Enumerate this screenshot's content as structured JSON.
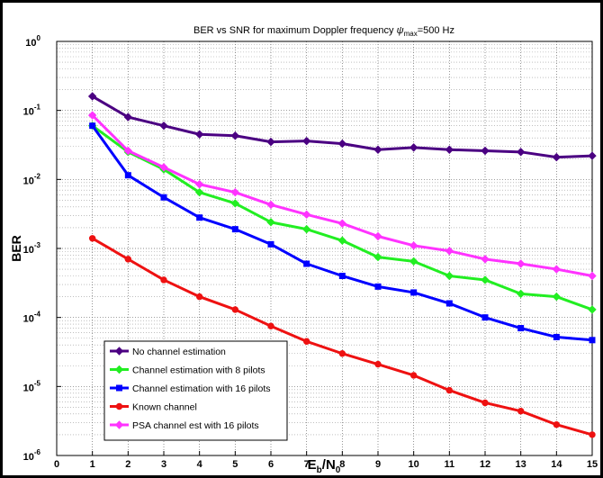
{
  "chart_data": {
    "type": "line",
    "title": "BER vs SNR for maximum Doppler frequency",
    "title_symbol": "ψ",
    "title_subscript": "max",
    "title_suffix": "=500 Hz",
    "xlabel_base": "E",
    "xlabel_sub1": "b",
    "xlabel_slash": "/N",
    "xlabel_sub2": "0",
    "ylabel": "BER",
    "y_scale": "log",
    "xlim": [
      0,
      15
    ],
    "ylim": [
      1e-06,
      1
    ],
    "x_ticks": [
      "0",
      "1",
      "2",
      "3",
      "4",
      "5",
      "6",
      "7",
      "8",
      "9",
      "10",
      "11",
      "12",
      "13",
      "14",
      "15"
    ],
    "y_ticks": [
      {
        "value": 1,
        "base": "10",
        "exp": "0"
      },
      {
        "value": 0.1,
        "base": "10",
        "exp": "-1"
      },
      {
        "value": 0.01,
        "base": "10",
        "exp": "-2"
      },
      {
        "value": 0.001,
        "base": "10",
        "exp": "-3"
      },
      {
        "value": 0.0001,
        "base": "10",
        "exp": "-4"
      },
      {
        "value": 1e-05,
        "base": "10",
        "exp": "-5"
      },
      {
        "value": 1e-06,
        "base": "10",
        "exp": "-6"
      }
    ],
    "grid": true,
    "legend_position": "bottom-left",
    "x": [
      1,
      2,
      3,
      4,
      5,
      6,
      7,
      8,
      9,
      10,
      11,
      12,
      13,
      14,
      15
    ],
    "series": [
      {
        "name": "No channel estimation",
        "color": "#4b0082",
        "marker": "diamond",
        "values": [
          0.16,
          0.08,
          0.06,
          0.045,
          0.043,
          0.035,
          0.036,
          0.033,
          0.027,
          0.029,
          0.027,
          0.026,
          0.025,
          0.021,
          0.022
        ]
      },
      {
        "name": "Channel estimation with 8 pilots",
        "color": "#22ee22",
        "marker": "diamond",
        "values": [
          0.06,
          0.025,
          0.014,
          0.0065,
          0.0045,
          0.0024,
          0.0019,
          0.0013,
          0.00075,
          0.00065,
          0.0004,
          0.00035,
          0.00022,
          0.0002,
          0.00013
        ]
      },
      {
        "name": "Channel estimation with 16 pilots",
        "color": "#0000ff",
        "marker": "square",
        "values": [
          0.06,
          0.0115,
          0.0055,
          0.0028,
          0.0019,
          0.00115,
          0.0006,
          0.0004,
          0.00028,
          0.00023,
          0.00016,
          0.0001,
          7e-05,
          5.2e-05,
          4.7e-05
        ]
      },
      {
        "name": "Known channel",
        "color": "#ee1111",
        "marker": "circle",
        "values": [
          0.0014,
          0.0007,
          0.00035,
          0.0002,
          0.00013,
          7.5e-05,
          4.5e-05,
          3e-05,
          2.1e-05,
          1.45e-05,
          8.8e-06,
          5.8e-06,
          4.4e-06,
          2.8e-06,
          2e-06
        ]
      },
      {
        "name": "PSA channel est with 16 pilots",
        "color": "#ff33ff",
        "marker": "diamond",
        "values": [
          0.085,
          0.026,
          0.015,
          0.0085,
          0.0065,
          0.0043,
          0.0031,
          0.0023,
          0.0015,
          0.0011,
          0.00092,
          0.0007,
          0.0006,
          0.0005,
          0.0004
        ]
      }
    ]
  }
}
